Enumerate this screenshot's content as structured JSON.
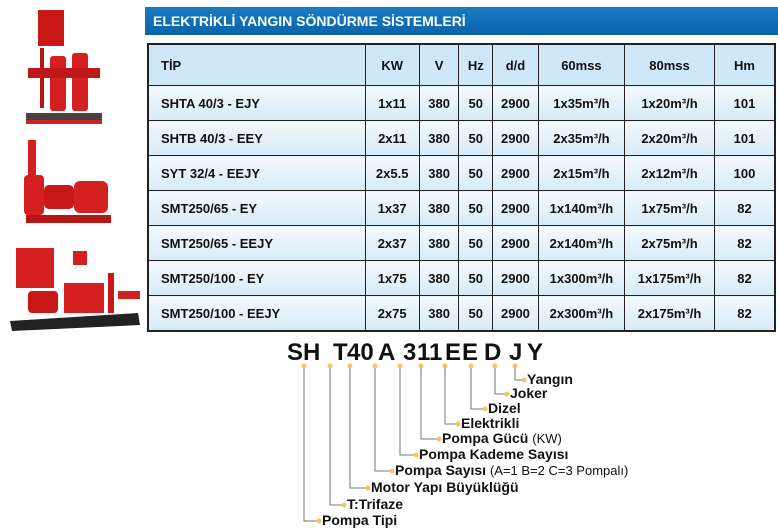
{
  "banner": {
    "title": "ELEKTRİKLİ YANGIN SÖNDÜRME SİSTEMLERİ"
  },
  "table": {
    "headers": [
      "TİP",
      "KW",
      "V",
      "Hz",
      "d/d",
      "60mss",
      "80mss",
      "Hm"
    ],
    "rows": [
      [
        "SHTA 40/3 - EJY",
        "1x11",
        "380",
        "50",
        "2900",
        "1x35m³/h",
        "1x20m³/h",
        "101"
      ],
      [
        "SHTB 40/3 - EEY",
        "2x11",
        "380",
        "50",
        "2900",
        "2x35m³/h",
        "2x20m³/h",
        "101"
      ],
      [
        "SYT 32/4 - EEJY",
        "2x5.5",
        "380",
        "50",
        "2900",
        "2x15m³/h",
        "2x12m³/h",
        "100"
      ],
      [
        "SMT250/65 - EY",
        "1x37",
        "380",
        "50",
        "2900",
        "1x140m³/h",
        "1x75m³/h",
        "82"
      ],
      [
        "SMT250/65 - EEJY",
        "2x37",
        "380",
        "50",
        "2900",
        "2x140m³/h",
        "2x75m³/h",
        "82"
      ],
      [
        "SMT250/100 - EY",
        "1x75",
        "380",
        "50",
        "2900",
        "1x300m³/h",
        "1x175m³/h",
        "82"
      ],
      [
        "SMT250/100 - EEJY",
        "2x75",
        "380",
        "50",
        "2900",
        "2x300m³/h",
        "2x175m³/h",
        "82"
      ]
    ]
  },
  "legend": {
    "code_chars": [
      "SH",
      "T",
      "40",
      "A",
      "3",
      "11",
      "E",
      "E",
      "D",
      "J",
      "Y"
    ],
    "labels": [
      {
        "text": "Yangın"
      },
      {
        "text": "Joker"
      },
      {
        "text": "Dizel"
      },
      {
        "text": "Elektrikli"
      },
      {
        "text": "Pompa Gücü",
        "note": "(KW)"
      },
      {
        "text": "Pompa Kademe Sayısı"
      },
      {
        "text": "Pompa Sayısı",
        "note": "(A=1 B=2 C=3 Pompalı)"
      },
      {
        "text": "Motor Yapı Büyüklüğü"
      },
      {
        "text": "T:Trifaze"
      },
      {
        "text": "Pompa Tipi"
      }
    ]
  },
  "colors": {
    "banner": "#0a6db3",
    "header_row": "#cfe8f8",
    "pump_red": "#d42020",
    "dot": "#f0c860"
  }
}
